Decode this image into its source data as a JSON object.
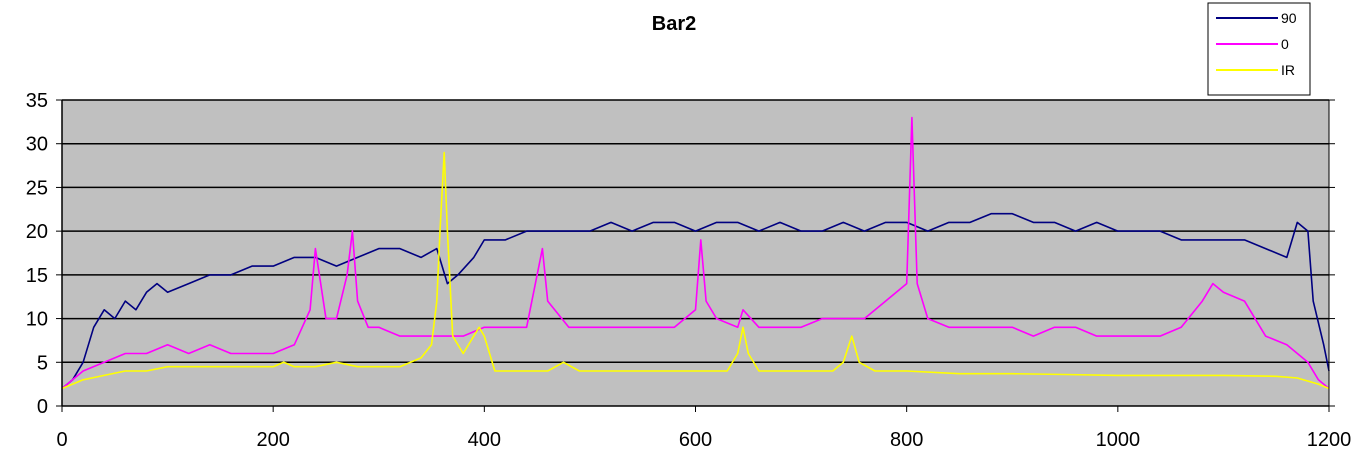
{
  "chart_data": {
    "type": "line",
    "title": "Bar2",
    "xlabel": "",
    "ylabel": "",
    "xlim": [
      0,
      1200
    ],
    "ylim": [
      0,
      35
    ],
    "x_ticks": [
      0,
      200,
      400,
      600,
      800,
      1000,
      1200
    ],
    "y_ticks": [
      0,
      5,
      10,
      15,
      20,
      25,
      30,
      35
    ],
    "grid": "horizontal",
    "plot_background": "#c0c0c0",
    "legend_position": "top-right",
    "series": [
      {
        "name": "90",
        "color": "#000080",
        "points": [
          [
            0,
            2
          ],
          [
            10,
            3
          ],
          [
            20,
            5
          ],
          [
            30,
            9
          ],
          [
            40,
            11
          ],
          [
            50,
            10
          ],
          [
            60,
            12
          ],
          [
            70,
            11
          ],
          [
            80,
            13
          ],
          [
            90,
            14
          ],
          [
            100,
            13
          ],
          [
            120,
            14
          ],
          [
            140,
            15
          ],
          [
            160,
            15
          ],
          [
            180,
            16
          ],
          [
            200,
            16
          ],
          [
            220,
            17
          ],
          [
            240,
            17
          ],
          [
            260,
            16
          ],
          [
            280,
            17
          ],
          [
            300,
            18
          ],
          [
            320,
            18
          ],
          [
            340,
            17
          ],
          [
            355,
            18
          ],
          [
            365,
            14
          ],
          [
            375,
            15
          ],
          [
            390,
            17
          ],
          [
            400,
            19
          ],
          [
            420,
            19
          ],
          [
            440,
            20
          ],
          [
            460,
            20
          ],
          [
            480,
            20
          ],
          [
            500,
            20
          ],
          [
            520,
            21
          ],
          [
            540,
            20
          ],
          [
            560,
            21
          ],
          [
            580,
            21
          ],
          [
            600,
            20
          ],
          [
            620,
            21
          ],
          [
            640,
            21
          ],
          [
            660,
            20
          ],
          [
            680,
            21
          ],
          [
            700,
            20
          ],
          [
            720,
            20
          ],
          [
            740,
            21
          ],
          [
            760,
            20
          ],
          [
            780,
            21
          ],
          [
            800,
            21
          ],
          [
            820,
            20
          ],
          [
            840,
            21
          ],
          [
            860,
            21
          ],
          [
            880,
            22
          ],
          [
            900,
            22
          ],
          [
            920,
            21
          ],
          [
            940,
            21
          ],
          [
            960,
            20
          ],
          [
            980,
            21
          ],
          [
            1000,
            20
          ],
          [
            1020,
            20
          ],
          [
            1040,
            20
          ],
          [
            1060,
            19
          ],
          [
            1080,
            19
          ],
          [
            1100,
            19
          ],
          [
            1120,
            19
          ],
          [
            1140,
            18
          ],
          [
            1160,
            17
          ],
          [
            1170,
            21
          ],
          [
            1180,
            20
          ],
          [
            1185,
            12
          ],
          [
            1195,
            7
          ],
          [
            1200,
            4
          ]
        ]
      },
      {
        "name": "0",
        "color": "#ff00ff",
        "points": [
          [
            0,
            2
          ],
          [
            20,
            4
          ],
          [
            40,
            5
          ],
          [
            60,
            6
          ],
          [
            80,
            6
          ],
          [
            100,
            7
          ],
          [
            120,
            6
          ],
          [
            140,
            7
          ],
          [
            160,
            6
          ],
          [
            180,
            6
          ],
          [
            200,
            6
          ],
          [
            220,
            7
          ],
          [
            235,
            11
          ],
          [
            240,
            18
          ],
          [
            250,
            10
          ],
          [
            260,
            10
          ],
          [
            270,
            15
          ],
          [
            275,
            20
          ],
          [
            280,
            12
          ],
          [
            290,
            9
          ],
          [
            300,
            9
          ],
          [
            320,
            8
          ],
          [
            340,
            8
          ],
          [
            360,
            8
          ],
          [
            380,
            8
          ],
          [
            400,
            9
          ],
          [
            420,
            9
          ],
          [
            440,
            9
          ],
          [
            455,
            18
          ],
          [
            460,
            12
          ],
          [
            480,
            9
          ],
          [
            500,
            9
          ],
          [
            520,
            9
          ],
          [
            540,
            9
          ],
          [
            560,
            9
          ],
          [
            580,
            9
          ],
          [
            600,
            11
          ],
          [
            605,
            19
          ],
          [
            610,
            12
          ],
          [
            620,
            10
          ],
          [
            640,
            9
          ],
          [
            645,
            11
          ],
          [
            660,
            9
          ],
          [
            680,
            9
          ],
          [
            700,
            9
          ],
          [
            720,
            10
          ],
          [
            740,
            10
          ],
          [
            760,
            10
          ],
          [
            780,
            12
          ],
          [
            800,
            14
          ],
          [
            805,
            33
          ],
          [
            810,
            14
          ],
          [
            820,
            10
          ],
          [
            840,
            9
          ],
          [
            860,
            9
          ],
          [
            880,
            9
          ],
          [
            900,
            9
          ],
          [
            920,
            8
          ],
          [
            940,
            9
          ],
          [
            960,
            9
          ],
          [
            980,
            8
          ],
          [
            1000,
            8
          ],
          [
            1020,
            8
          ],
          [
            1040,
            8
          ],
          [
            1060,
            9
          ],
          [
            1080,
            12
          ],
          [
            1090,
            14
          ],
          [
            1100,
            13
          ],
          [
            1120,
            12
          ],
          [
            1140,
            8
          ],
          [
            1160,
            7
          ],
          [
            1180,
            5
          ],
          [
            1190,
            3
          ],
          [
            1200,
            2
          ]
        ]
      },
      {
        "name": "IR",
        "color": "#ffff00",
        "points": [
          [
            0,
            2
          ],
          [
            20,
            3
          ],
          [
            40,
            3.5
          ],
          [
            60,
            4
          ],
          [
            80,
            4
          ],
          [
            100,
            4.5
          ],
          [
            120,
            4.5
          ],
          [
            140,
            4.5
          ],
          [
            160,
            4.5
          ],
          [
            180,
            4.5
          ],
          [
            200,
            4.5
          ],
          [
            210,
            5
          ],
          [
            220,
            4.5
          ],
          [
            240,
            4.5
          ],
          [
            260,
            5
          ],
          [
            280,
            4.5
          ],
          [
            300,
            4.5
          ],
          [
            320,
            4.5
          ],
          [
            340,
            5.5
          ],
          [
            350,
            7
          ],
          [
            355,
            12
          ],
          [
            358,
            20
          ],
          [
            362,
            29
          ],
          [
            365,
            20
          ],
          [
            370,
            8
          ],
          [
            380,
            6
          ],
          [
            395,
            9
          ],
          [
            400,
            8
          ],
          [
            410,
            4
          ],
          [
            440,
            4
          ],
          [
            460,
            4
          ],
          [
            475,
            5
          ],
          [
            490,
            4
          ],
          [
            520,
            4
          ],
          [
            560,
            4
          ],
          [
            600,
            4
          ],
          [
            630,
            4
          ],
          [
            640,
            6
          ],
          [
            645,
            9
          ],
          [
            650,
            6
          ],
          [
            660,
            4
          ],
          [
            700,
            4
          ],
          [
            730,
            4
          ],
          [
            740,
            5
          ],
          [
            748,
            8
          ],
          [
            755,
            5
          ],
          [
            770,
            4
          ],
          [
            800,
            4
          ],
          [
            850,
            3.7
          ],
          [
            900,
            3.7
          ],
          [
            950,
            3.6
          ],
          [
            1000,
            3.5
          ],
          [
            1050,
            3.5
          ],
          [
            1100,
            3.5
          ],
          [
            1150,
            3.4
          ],
          [
            1170,
            3.2
          ],
          [
            1190,
            2.5
          ],
          [
            1200,
            2
          ]
        ]
      }
    ]
  }
}
